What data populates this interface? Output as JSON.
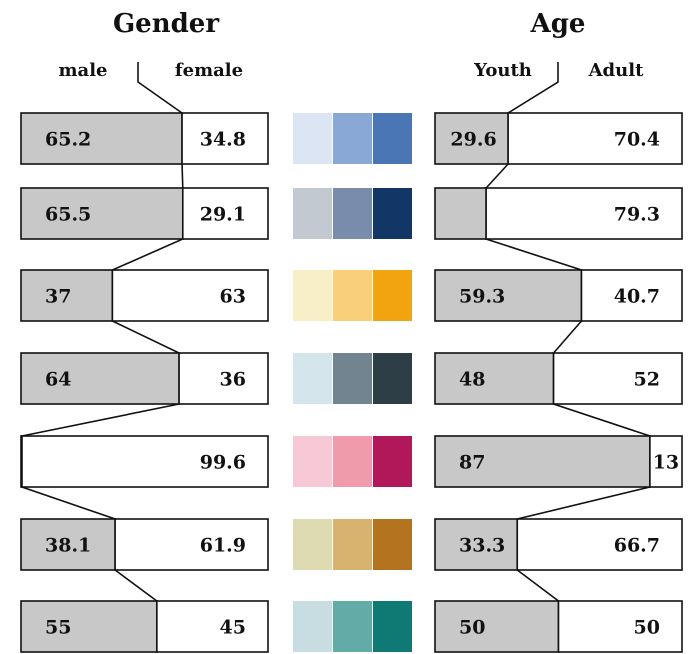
{
  "chart_data": {
    "type": "bar",
    "orientation": "horizontal-stacked-100",
    "panels": [
      {
        "title": "Gender",
        "series_names": [
          "male",
          "female"
        ],
        "rows": [
          {
            "values": [
              65.2,
              34.8
            ],
            "labels": [
              "65.2",
              "34.8"
            ]
          },
          {
            "values": [
              65.5,
              29.1
            ],
            "labels": [
              "65.5",
              "29.1"
            ]
          },
          {
            "values": [
              37,
              63
            ],
            "labels": [
              "37",
              "63"
            ]
          },
          {
            "values": [
              64,
              36
            ],
            "labels": [
              "64",
              "36"
            ]
          },
          {
            "values": [
              0.4,
              99.6
            ],
            "labels": [
              "",
              "99.6"
            ]
          },
          {
            "values": [
              38.1,
              61.9
            ],
            "labels": [
              "38.1",
              "61.9"
            ]
          },
          {
            "values": [
              55,
              45
            ],
            "labels": [
              "55",
              "45"
            ]
          }
        ]
      },
      {
        "title": "Age",
        "series_names": [
          "Youth",
          "Adult"
        ],
        "rows": [
          {
            "values": [
              29.6,
              70.4
            ],
            "labels": [
              "29.6",
              "70.4"
            ]
          },
          {
            "values": [
              20.7,
              79.3
            ],
            "labels": [
              "",
              "79.3"
            ]
          },
          {
            "values": [
              59.3,
              40.7
            ],
            "labels": [
              "59.3",
              "40.7"
            ]
          },
          {
            "values": [
              48,
              52
            ],
            "labels": [
              "48",
              "52"
            ]
          },
          {
            "values": [
              87,
              13
            ],
            "labels": [
              "87",
              "13"
            ]
          },
          {
            "values": [
              33.3,
              66.7
            ],
            "labels": [
              "33.3",
              "66.7"
            ]
          },
          {
            "values": [
              50,
              50
            ],
            "labels": [
              "50",
              "50"
            ]
          }
        ]
      }
    ],
    "segment_colors": {
      "shaded": "#c8c8c8",
      "open": "#ffffff"
    },
    "palettes": [
      [
        "#dbe5f3",
        "#8aa8d6",
        "#4a76b6"
      ],
      [
        "#c3c9d0",
        "#7a8cab",
        "#123766"
      ],
      [
        "#f8efc8",
        "#f9cf7a",
        "#f1a40f"
      ],
      [
        "#d4e5ec",
        "#71848f",
        "#2d3e46"
      ],
      [
        "#f7c9d6",
        "#ef9bab",
        "#b0185a"
      ],
      [
        "#dedbb2",
        "#d8b26f",
        "#b3731f"
      ],
      [
        "#c8dde1",
        "#62aba6",
        "#0f7a73"
      ]
    ]
  }
}
